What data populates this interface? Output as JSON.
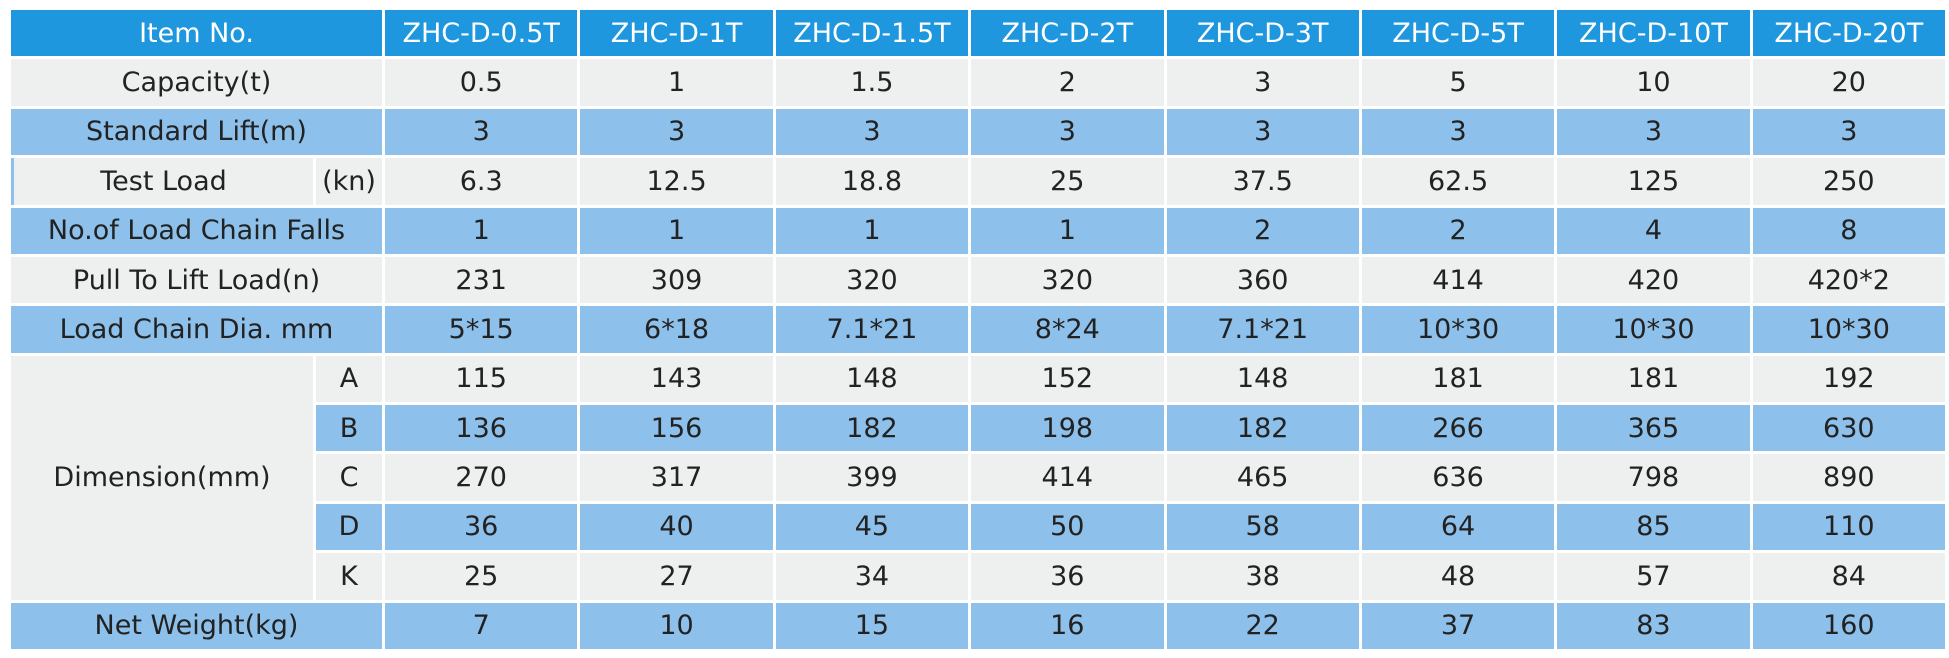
{
  "header": {
    "item_label": "Item No.",
    "models": [
      "ZHC-D-0.5T",
      "ZHC-D-1T",
      "ZHC-D-1.5T",
      "ZHC-D-2T",
      "ZHC-D-3T",
      "ZHC-D-5T",
      "ZHC-D-10T",
      "ZHC-D-20T"
    ]
  },
  "rows": {
    "capacity": {
      "label": "Capacity(t)",
      "values": [
        "0.5",
        "1",
        "1.5",
        "2",
        "3",
        "5",
        "10",
        "20"
      ]
    },
    "standard_lift": {
      "label": "Standard Lift(m)",
      "values": [
        "3",
        "3",
        "3",
        "3",
        "3",
        "3",
        "3",
        "3"
      ]
    },
    "test_load": {
      "label": "Test Load",
      "unit": "(kn)",
      "values": [
        "6.3",
        "12.5",
        "18.8",
        "25",
        "37.5",
        "62.5",
        "125",
        "250"
      ]
    },
    "chain_falls": {
      "label": "No.of Load Chain Falls",
      "values": [
        "1",
        "1",
        "1",
        "1",
        "2",
        "2",
        "4",
        "8"
      ]
    },
    "pull": {
      "label": "Pull To Lift Load(n)",
      "values": [
        "231",
        "309",
        "320",
        "320",
        "360",
        "414",
        "420",
        "420*2"
      ]
    },
    "chain_dia": {
      "label": "Load Chain Dia. mm",
      "values": [
        "5*15",
        "6*18",
        "7.1*21",
        "8*24",
        "7.1*21",
        "10*30",
        "10*30",
        "10*30"
      ]
    },
    "net_weight": {
      "label": "Net Weight(kg)",
      "values": [
        "7",
        "10",
        "15",
        "16",
        "22",
        "37",
        "83",
        "160"
      ]
    }
  },
  "dimension": {
    "label": "Dimension(mm)",
    "rows": [
      {
        "key": "A",
        "values": [
          "115",
          "143",
          "148",
          "152",
          "148",
          "181",
          "181",
          "192"
        ]
      },
      {
        "key": "B",
        "values": [
          "136",
          "156",
          "182",
          "198",
          "182",
          "266",
          "365",
          "630"
        ]
      },
      {
        "key": "C",
        "values": [
          "270",
          "317",
          "399",
          "414",
          "465",
          "636",
          "798",
          "890"
        ]
      },
      {
        "key": "D",
        "values": [
          "36",
          "40",
          "45",
          "50",
          "58",
          "64",
          "85",
          "110"
        ]
      },
      {
        "key": "K",
        "values": [
          "25",
          "27",
          "34",
          "36",
          "38",
          "48",
          "57",
          "84"
        ]
      }
    ]
  },
  "colors": {
    "header": "#1e97df",
    "row_blue": "#8dc0ea",
    "row_gray": "#eef0f0"
  }
}
